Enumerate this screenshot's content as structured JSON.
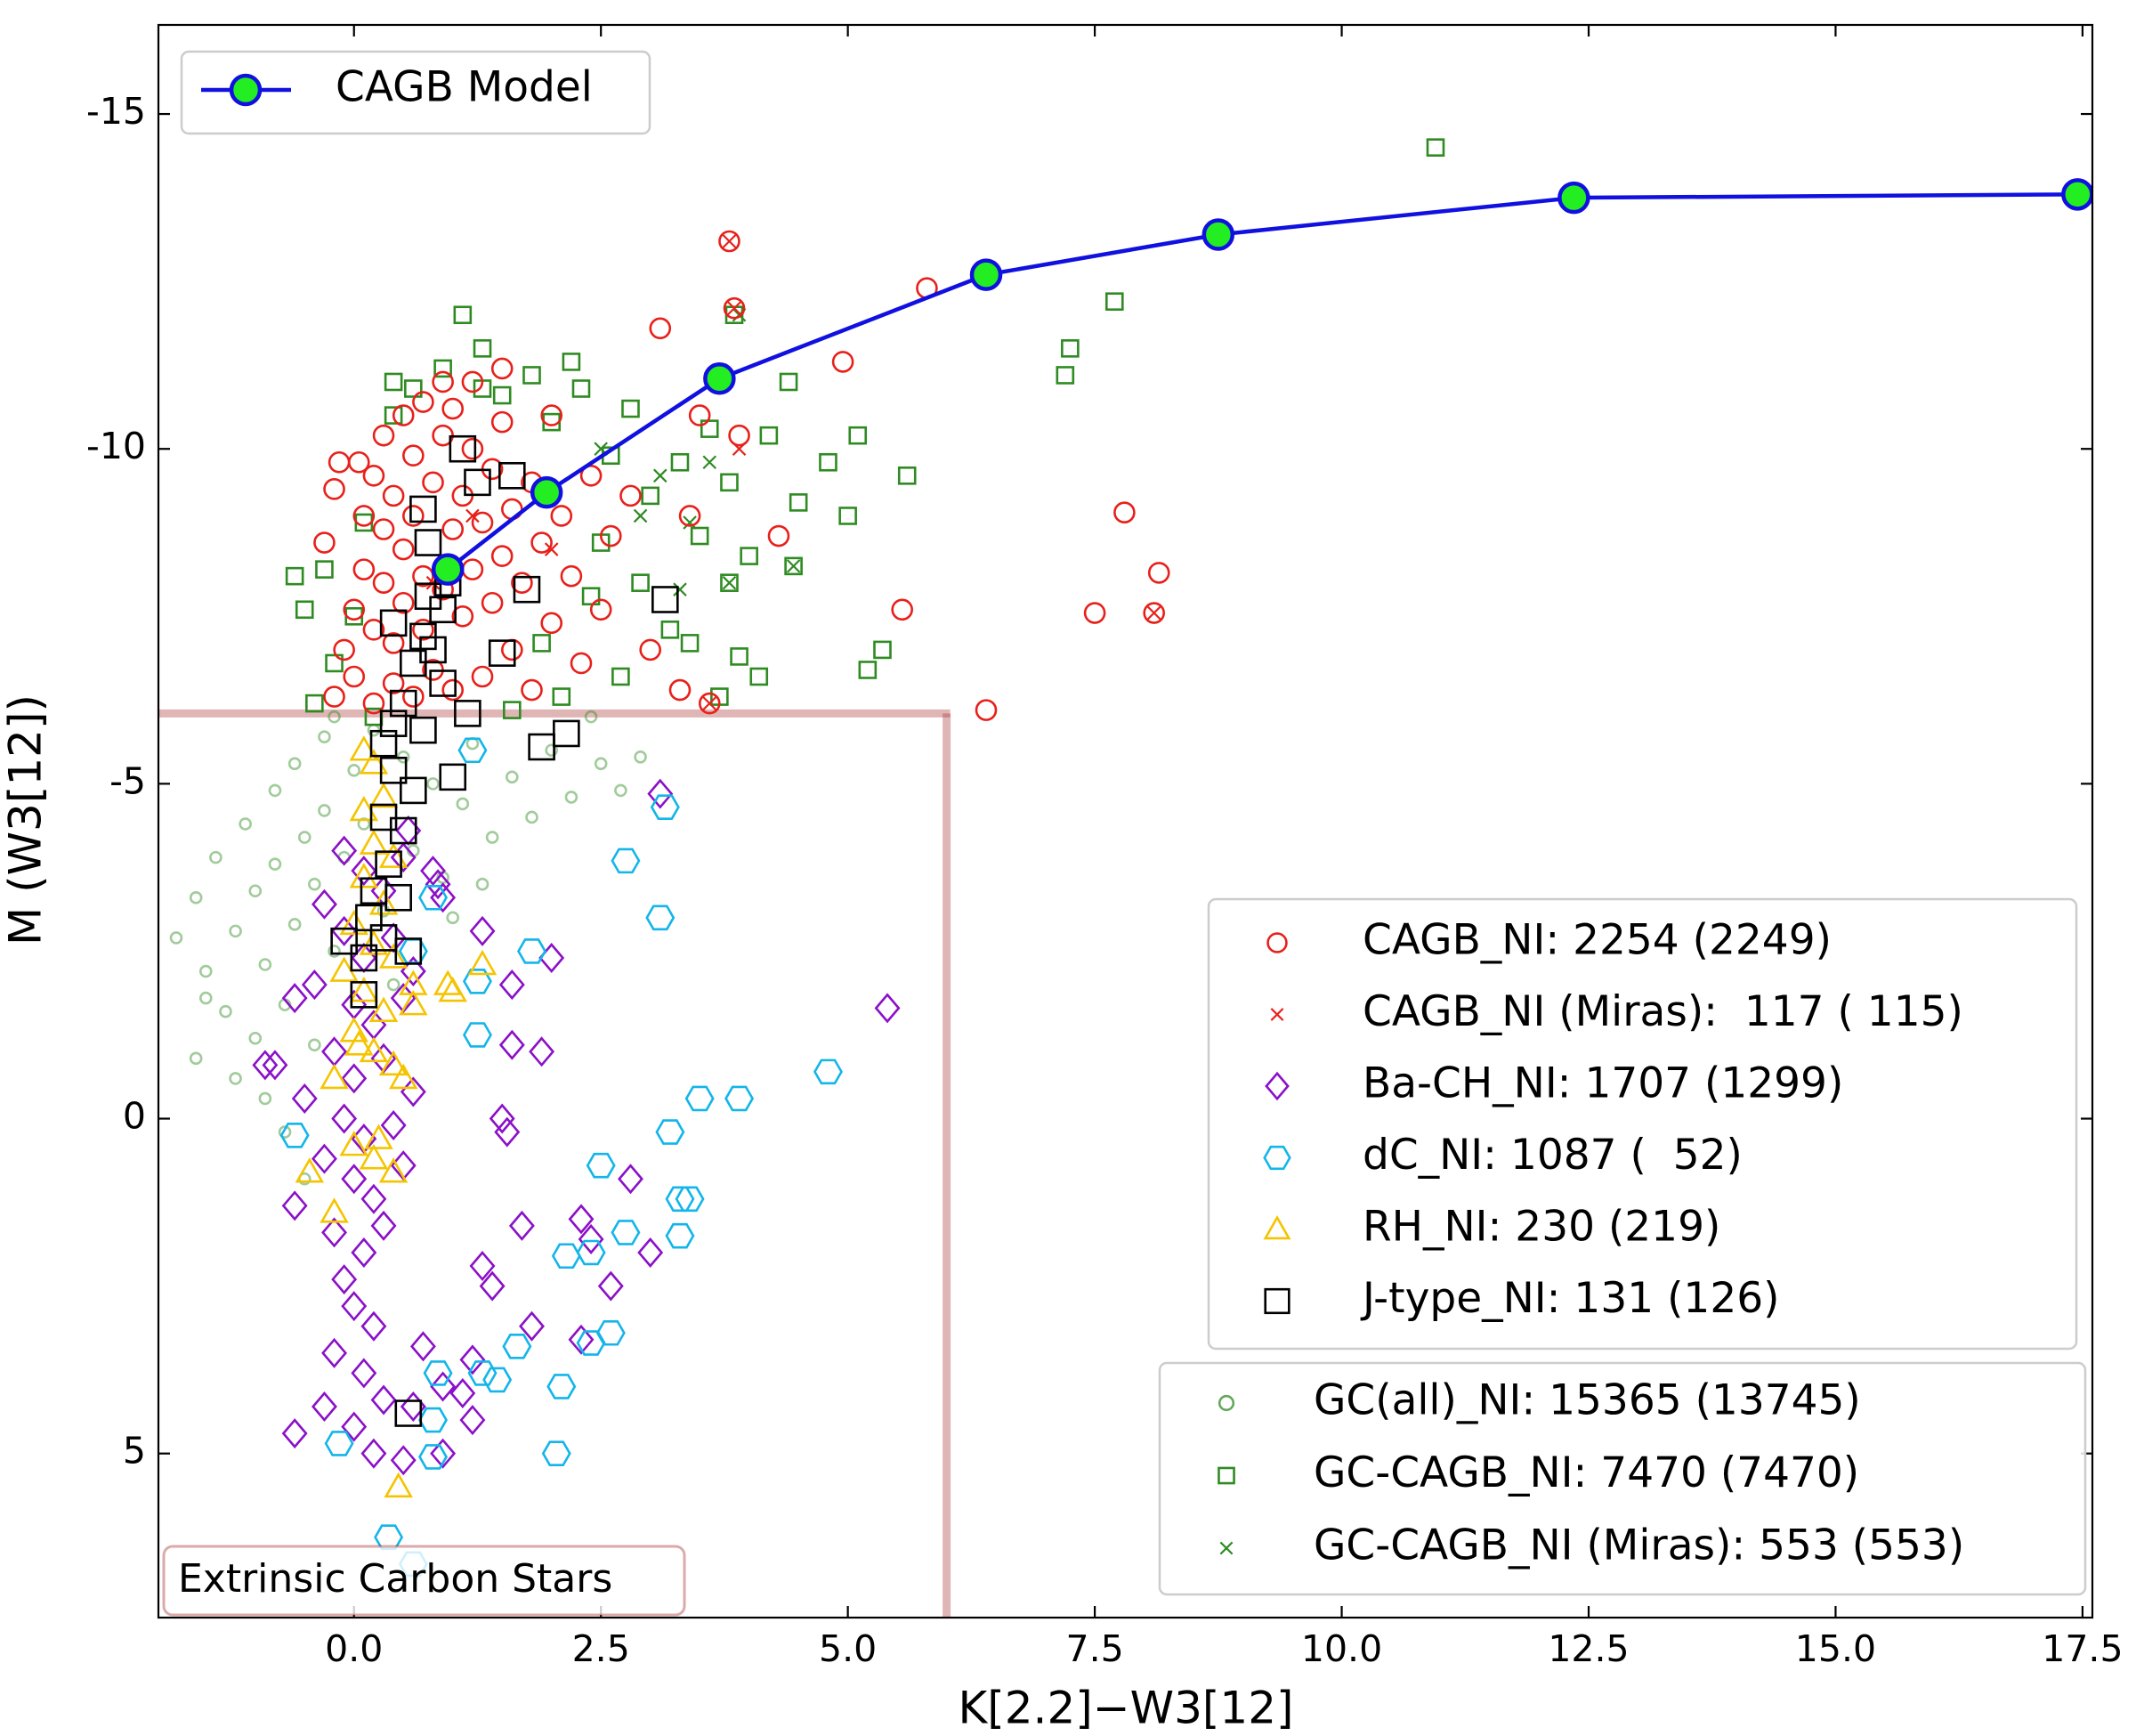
{
  "chart_data": {
    "type": "scatter",
    "xlabel": "K[2.2]−W3[12]",
    "ylabel": "M (W3[12])",
    "xlim": [
      -1.98,
      17.6
    ],
    "ylim": [
      7.45,
      -16.33
    ],
    "xticks": [
      {
        "value": 0,
        "label": "0.0"
      },
      {
        "value": 2.5,
        "label": "2.5"
      },
      {
        "value": 5,
        "label": "5.0"
      },
      {
        "value": 7.5,
        "label": "7.5"
      },
      {
        "value": 10,
        "label": "10.0"
      },
      {
        "value": 12.5,
        "label": "12.5"
      },
      {
        "value": 15,
        "label": "15.0"
      },
      {
        "value": 17.5,
        "label": "17.5"
      }
    ],
    "yticks": [
      -15,
      -10,
      -5,
      0,
      5
    ],
    "region": {
      "x": 6,
      "y": -6.05,
      "label": "Extrinsic Carbon Stars",
      "color": "#a52a2a"
    },
    "series": [
      {
        "name": "GC(all)_NI: 15365 (13745)",
        "marker": "o",
        "size": 6,
        "color": "#2e8b22",
        "alpha": 0.45,
        "legend": "lower right",
        "x": [
          -1.8,
          -1.6,
          -1.5,
          -1.4,
          -1.3,
          -1.2,
          -1.1,
          -1.0,
          -1.0,
          -0.9,
          -0.8,
          -0.8,
          -0.7,
          -0.6,
          -0.6,
          -0.5,
          -0.4,
          -0.4,
          -0.3,
          -0.3,
          -0.2,
          -0.1,
          0.0,
          0.1,
          0.2,
          0.3,
          0.5,
          0.6,
          0.8,
          0.9,
          1.1,
          1.2,
          1.4,
          1.6,
          1.8,
          2.0,
          2.2,
          2.5,
          2.7,
          2.9,
          1.0,
          1.3,
          -0.7,
          -0.9,
          -1.2,
          -0.5,
          -1.6,
          -1.5,
          2.4,
          -0.2,
          0.4
        ],
        "y": [
          -2.7,
          -3.3,
          -2.2,
          -3.9,
          -1.6,
          -2.8,
          -4.4,
          -3.4,
          -1.2,
          -2.3,
          -4.9,
          -3.8,
          -1.7,
          -2.9,
          -5.3,
          -4.2,
          -3.5,
          -1.1,
          -5.7,
          -4.6,
          -2.5,
          -3.9,
          -5.2,
          -4.4,
          -5.8,
          -3.1,
          -5.4,
          -4.0,
          -5.0,
          -3.6,
          -4.7,
          -5.6,
          -4.2,
          -5.1,
          -4.5,
          -5.5,
          -4.8,
          -5.3,
          -4.9,
          -5.4,
          -3.0,
          -3.5,
          0.2,
          -0.3,
          -0.6,
          0.9,
          -0.9,
          -1.8,
          -6.0,
          -6.0,
          -2.0
        ]
      },
      {
        "name": "GC-CAGB_NI: 7470 (7470)",
        "marker": "s",
        "size": 9,
        "color": "#2e8b22",
        "legend": "lower right",
        "x": [
          -0.4,
          -0.2,
          0.0,
          -0.3,
          0.1,
          0.2,
          0.4,
          0.6,
          0.9,
          1.3,
          1.5,
          1.8,
          2.0,
          2.3,
          2.6,
          2.8,
          3.0,
          3.3,
          3.5,
          2.9,
          3.2,
          2.7,
          2.4,
          2.1,
          1.9,
          1.6,
          2.5,
          3.6,
          3.8,
          4.0,
          4.2,
          4.5,
          4.8,
          5.0,
          3.4,
          3.9,
          4.1,
          3.7,
          4.4,
          2.2,
          1.1,
          1.3,
          -0.5,
          -0.6,
          0.4,
          10.95,
          7.7,
          7.25,
          7.2,
          5.6,
          5.35,
          5.2,
          3.85,
          4.45,
          3.8,
          5.1
        ],
        "y": [
          -6.2,
          -6.8,
          -7.5,
          -8.2,
          -8.9,
          -6.0,
          -10.5,
          -10.9,
          -11.2,
          -11.5,
          -10.8,
          -11.1,
          -10.4,
          -10.9,
          -9.9,
          -10.6,
          -9.3,
          -9.8,
          -8.7,
          -8.0,
          -7.3,
          -6.6,
          -7.8,
          -6.3,
          -7.1,
          -6.1,
          -8.6,
          -10.3,
          -9.5,
          -8.4,
          -10.2,
          -9.2,
          -9.8,
          -9.0,
          -7.1,
          -6.9,
          -6.6,
          -6.3,
          -11.0,
          -11.3,
          -12.0,
          -10.9,
          -7.6,
          -8.1,
          -11.0,
          -14.5,
          -12.2,
          -11.5,
          -11.1,
          -9.6,
          -7.0,
          -6.7,
          -12.0,
          -8.25,
          -8.0,
          -10.2
        ]
      },
      {
        "name": "GC-CAGB_NI (Miras): 553 (553)",
        "marker": "x",
        "size": 7,
        "color": "#2e8b22",
        "legend": "lower right",
        "x": [
          3.9,
          4.45,
          3.8,
          3.1,
          3.4,
          2.9,
          3.6,
          2.5,
          3.3
        ],
        "y": [
          -12.0,
          -8.25,
          -8.0,
          -9.6,
          -8.9,
          -9.0,
          -9.8,
          -10.0,
          -7.9
        ]
      },
      {
        "name": "CAGB_NI: 2254 (2249)",
        "marker": "o",
        "size": 11,
        "color": "#e8201a",
        "legend": "center right",
        "x": [
          -0.2,
          -0.1,
          0.0,
          0.0,
          0.1,
          0.1,
          0.2,
          0.2,
          0.2,
          0.3,
          0.3,
          0.3,
          0.4,
          0.4,
          0.4,
          0.5,
          0.5,
          0.5,
          0.6,
          0.6,
          0.6,
          0.7,
          0.7,
          0.7,
          0.8,
          0.8,
          0.9,
          0.9,
          1.0,
          1.0,
          1.0,
          1.1,
          1.1,
          1.2,
          1.2,
          1.3,
          1.3,
          1.4,
          1.4,
          1.5,
          1.5,
          1.6,
          1.6,
          1.7,
          1.8,
          1.8,
          1.9,
          2.0,
          2.1,
          2.2,
          2.3,
          2.4,
          2.5,
          2.6,
          2.8,
          3.0,
          -0.2,
          -0.3,
          0.05,
          1.2,
          1.5,
          0.9,
          2.0,
          3.1,
          3.8,
          3.85,
          4.95,
          5.8,
          3.9,
          4.3,
          3.4,
          3.3,
          3.6,
          5.55,
          6.4,
          7.5,
          7.8,
          8.15,
          8.1,
          -0.15,
          3.5
        ],
        "y": [
          -6.3,
          -7.0,
          -6.6,
          -7.6,
          -8.2,
          -9.0,
          -6.2,
          -7.3,
          -9.6,
          -8.0,
          -8.8,
          -10.2,
          -6.5,
          -7.1,
          -9.3,
          -7.7,
          -8.5,
          -10.5,
          -6.3,
          -9.0,
          -9.9,
          -7.3,
          -8.1,
          -10.7,
          -6.7,
          -9.5,
          -7.9,
          -10.2,
          -6.4,
          -8.8,
          -10.6,
          -7.5,
          -9.3,
          -8.2,
          -10.0,
          -6.6,
          -8.9,
          -7.7,
          -9.7,
          -8.4,
          -10.4,
          -7.0,
          -9.1,
          -8.0,
          -9.5,
          -6.4,
          -8.6,
          -7.4,
          -9.0,
          -8.1,
          -6.8,
          -9.6,
          -7.6,
          -8.7,
          -9.3,
          -7.0,
          -9.4,
          -8.6,
          -9.8,
          -11.0,
          -11.2,
          -11.0,
          -10.5,
          -11.8,
          -13.1,
          -12.1,
          -11.3,
          -12.4,
          -10.2,
          -8.7,
          -9.0,
          -6.4,
          -6.2,
          -7.6,
          -6.1,
          -7.55,
          -9.05,
          -8.15,
          -7.55,
          -9.8,
          -10.5
        ]
      },
      {
        "name": "CAGB_NI (Miras):  117 ( 115)",
        "marker": "x",
        "size": 7,
        "color": "#e8201a",
        "legend": "center right",
        "x": [
          3.8,
          3.85,
          8.1,
          3.6,
          1.2,
          0.8,
          2.0,
          3.9
        ],
        "y": [
          -13.1,
          -12.1,
          -7.55,
          -6.2,
          -9.0,
          -8.0,
          -8.5,
          -10.0
        ]
      },
      {
        "name": "Ba-CH_NI: 1707 (1299)",
        "marker": "D",
        "size": 15,
        "color": "#8b10c8",
        "legend": "center right",
        "x": [
          -0.1,
          0.1,
          0.3,
          0.5,
          0.8,
          0.9,
          -0.3,
          -0.1,
          0.1,
          0.4,
          0.6,
          -0.4,
          0.0,
          0.2,
          0.5,
          -0.2,
          0.0,
          0.3,
          0.6,
          -0.5,
          -0.1,
          0.1,
          0.4,
          -0.3,
          0.0,
          0.2,
          0.5,
          -0.6,
          -0.2,
          0.1,
          0.3,
          -0.1,
          0.0,
          0.2,
          -0.2,
          0.1,
          0.3,
          -0.3,
          0.0,
          0.2,
          0.5,
          -0.6,
          0.6,
          0.9,
          0.7,
          5.4,
          3.1,
          2.0,
          1.6,
          1.3,
          1.9,
          1.6,
          1.5,
          1.55,
          2.8,
          2.3,
          1.7,
          2.4,
          3.0,
          2.6,
          1.3,
          1.4,
          1.8,
          2.3,
          1.2,
          1.1,
          1.2,
          0.9,
          -0.6,
          -0.8,
          -0.9,
          0.85,
          0.55
        ],
        "y": [
          -4.0,
          -3.7,
          -3.4,
          -3.9,
          -3.7,
          -3.3,
          -3.2,
          -2.8,
          -2.4,
          -2.7,
          -2.2,
          -2.0,
          -1.7,
          -1.4,
          -1.8,
          -1.0,
          -0.6,
          -0.9,
          -0.4,
          -0.3,
          0.0,
          0.3,
          0.1,
          0.6,
          0.9,
          1.2,
          0.7,
          1.3,
          1.7,
          2.0,
          1.6,
          2.4,
          2.8,
          3.1,
          3.5,
          3.8,
          4.2,
          4.3,
          4.6,
          5.0,
          5.1,
          4.7,
          4.3,
          4.0,
          3.4,
          -1.65,
          -4.85,
          -2.4,
          -2.0,
          -2.8,
          -1.0,
          -1.1,
          0.0,
          0.2,
          0.9,
          1.5,
          1.6,
          1.8,
          2.0,
          2.5,
          2.2,
          2.5,
          3.1,
          3.3,
          3.6,
          4.1,
          4.5,
          5.0,
          -1.8,
          -0.8,
          -0.8,
          -3.5,
          -4.3
        ]
      },
      {
        "name": "dC_NI: 1087 (  52)",
        "marker": "h",
        "size": 15,
        "color": "#13b5ea",
        "legend": "center right",
        "x": [
          1.2,
          3.15,
          2.75,
          3.1,
          1.8,
          3.9,
          3.5,
          4.8,
          3.2,
          2.5,
          3.3,
          3.4,
          2.4,
          2.15,
          2.75,
          3.3,
          2.6,
          2.4,
          1.65,
          1.3,
          1.45,
          0.85,
          2.1,
          0.8,
          2.05,
          0.8,
          -0.15,
          0.35,
          0.6,
          -0.6,
          0.6,
          0.8,
          1.25,
          1.25
        ],
        "y": [
          -5.5,
          -4.65,
          -3.85,
          -3.0,
          -2.5,
          -0.3,
          -0.3,
          -0.7,
          0.2,
          0.7,
          1.2,
          1.2,
          2.0,
          2.05,
          1.7,
          1.75,
          3.2,
          3.35,
          3.4,
          3.8,
          3.9,
          3.8,
          4.0,
          4.5,
          5.0,
          5.05,
          4.85,
          6.25,
          6.65,
          0.25,
          -2.5,
          -3.3,
          -1.25,
          -2.05
        ]
      },
      {
        "name": "RH_NI: 230 (219)",
        "marker": "^",
        "size": 14,
        "color": "#f5c400",
        "legend": "center right",
        "x": [
          0.1,
          0.2,
          0.3,
          0.1,
          0.2,
          0.4,
          0.1,
          0.3,
          0.0,
          0.2,
          0.4,
          -0.1,
          0.1,
          0.3,
          0.0,
          0.2,
          0.4,
          -0.2,
          0.6,
          0.6,
          0.5,
          0.0,
          0.2,
          0.4,
          -0.45,
          0.05,
          1.3,
          1.0,
          0.95,
          0.45,
          -0.2,
          0.25
        ],
        "y": [
          -5.5,
          -5.3,
          -4.8,
          -4.6,
          -4.1,
          -3.9,
          -3.6,
          -3.2,
          -2.9,
          -2.6,
          -2.4,
          -2.2,
          -1.9,
          -1.6,
          -1.3,
          -1.0,
          -0.8,
          -0.6,
          -1.7,
          -2.0,
          -0.6,
          0.4,
          0.6,
          0.8,
          0.8,
          -1.1,
          -2.3,
          -1.9,
          -2.0,
          5.5,
          1.4,
          0.3
        ]
      },
      {
        "name": "J-type_NI: 131 (126)",
        "marker": "s",
        "size": 14,
        "color": "#000000",
        "legend": "center right",
        "x": [
          1.1,
          1.25,
          1.6,
          0.7,
          0.75,
          1.75,
          3.15,
          1.5,
          1.15,
          1.9,
          2.15,
          1.0,
          0.55,
          0.1,
          -0.1,
          0.9,
          0.7,
          0.8,
          0.6,
          0.9,
          0.5,
          0.4,
          0.3,
          0.4,
          0.6,
          0.3,
          0.5,
          0.35,
          0.2,
          0.45,
          0.15,
          0.3,
          0.1,
          0.55,
          0.7,
          0.75,
          0.95,
          0.4
        ],
        "y": [
          -10.0,
          -9.5,
          -9.6,
          -9.1,
          -8.6,
          -7.9,
          -7.75,
          -6.95,
          -6.05,
          -5.55,
          -5.75,
          -5.1,
          4.4,
          -1.85,
          -2.65,
          -7.6,
          -7.2,
          -7.0,
          -6.8,
          -6.5,
          -6.2,
          -5.9,
          -5.6,
          -5.2,
          -4.9,
          -4.5,
          -4.3,
          -3.8,
          -3.4,
          -3.3,
          -3.0,
          -2.7,
          -2.4,
          -2.5,
          -5.8,
          -7.8,
          -8.0,
          -7.4
        ]
      },
      {
        "name": "CAGB Model",
        "type": "line",
        "marker": "o",
        "size": 16,
        "color": "#1010e0",
        "marker_fill": "#22ee22",
        "legend": "upper left",
        "x": [
          0.95,
          1.95,
          3.7,
          6.4,
          8.75,
          12.35,
          17.45
        ],
        "y": [
          -8.2,
          -9.35,
          -11.05,
          -12.6,
          -13.2,
          -13.75,
          -13.8
        ]
      }
    ]
  }
}
